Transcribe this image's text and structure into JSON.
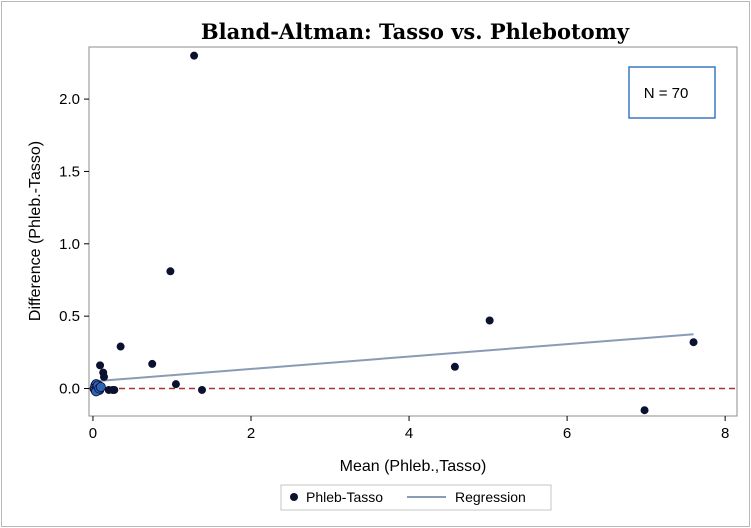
{
  "chart_data": {
    "type": "scatter",
    "title": "Bland-Altman: Tasso vs. Phlebotomy",
    "xlabel": "Mean (Phleb.,Tasso)",
    "ylabel": "Difference (Phleb.-Tasso)",
    "xlim": [
      -0.05,
      8.15
    ],
    "ylim": [
      -0.19,
      2.36
    ],
    "xticks": [
      0,
      2,
      4,
      6,
      8
    ],
    "yticks": [
      0.0,
      0.5,
      1.0,
      1.5,
      2.0
    ],
    "xtick_labels": [
      "0",
      "2",
      "4",
      "6",
      "8"
    ],
    "ytick_labels": [
      "0.0",
      "0.5",
      "1.0",
      "1.5",
      "2.0"
    ],
    "annotation": "N = 70",
    "reference_line": {
      "y": 0,
      "style": "dashed",
      "color": "#a83232"
    },
    "legend": {
      "position": "bottom-center",
      "entries": [
        "Phleb-Tasso",
        "Regression"
      ]
    },
    "grid": false,
    "series": [
      {
        "name": "Phleb-Tasso",
        "kind": "points",
        "color": "#0b1230",
        "x": [
          1.28,
          0.98,
          5.02,
          4.58,
          7.6,
          6.98,
          0.35,
          0.75,
          0.09,
          0.13,
          0.14,
          1.05,
          1.38,
          0.2,
          0.25,
          0.27,
          0.03,
          0.04,
          0.05,
          0.06,
          0.07,
          0.08,
          0.02,
          0.03,
          0.05,
          0.07,
          0.04,
          0.06,
          0.08,
          0.1
        ],
        "y": [
          2.3,
          0.81,
          0.47,
          0.15,
          0.32,
          -0.15,
          0.29,
          0.17,
          0.16,
          0.11,
          0.08,
          0.03,
          -0.01,
          -0.01,
          -0.01,
          -0.01,
          0.02,
          0.03,
          0.01,
          0.0,
          0.02,
          -0.01,
          0.0,
          -0.01,
          0.01,
          0.0,
          -0.02,
          0.02,
          0.0,
          0.01
        ]
      },
      {
        "name": "Regression",
        "kind": "line",
        "color": "#8a9bb5",
        "x": [
          0.02,
          7.6
        ],
        "y": [
          0.05,
          0.375
        ]
      }
    ]
  },
  "colors": {
    "points": "#0b1230",
    "cluster_fill": "#2f63b8",
    "regression": "#8a9bb5",
    "reference": "#a83232",
    "annotation_border": "#2a6fc4"
  }
}
